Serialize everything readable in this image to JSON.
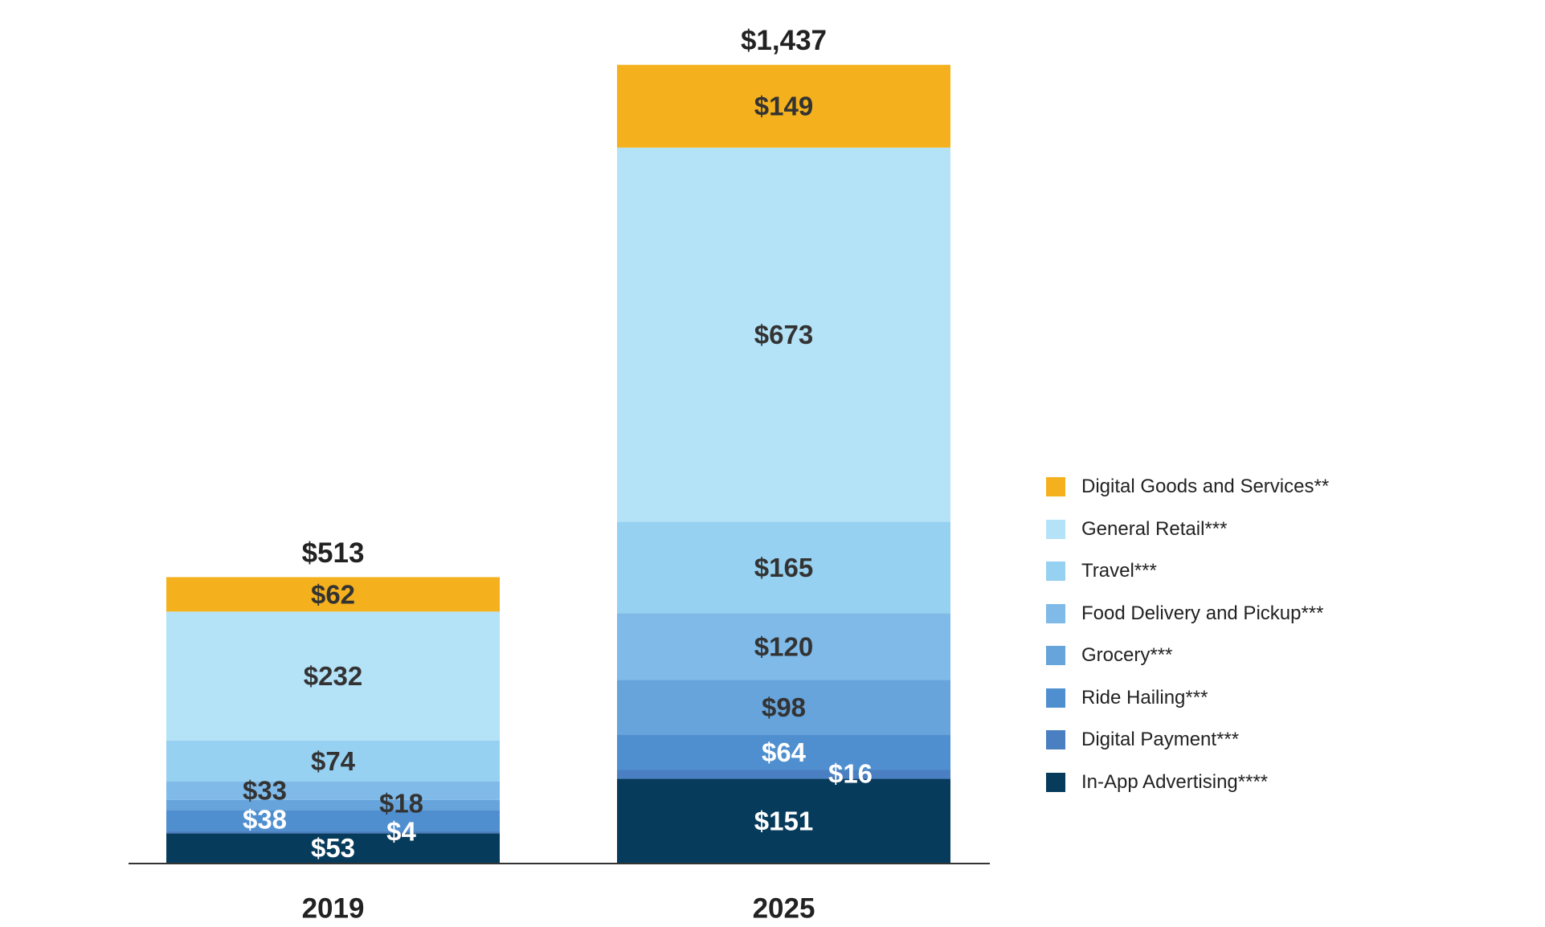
{
  "chart_data": {
    "type": "bar",
    "stacked": true,
    "categories": [
      "2019",
      "2025"
    ],
    "totals": [
      "$513",
      "$1,437"
    ],
    "series": [
      {
        "name": "In-App Advertising****",
        "color": "#073b5c",
        "values": [
          53,
          151
        ],
        "labels": [
          "$53",
          "$151"
        ],
        "label_color": "#ffffff"
      },
      {
        "name": "Digital Payment***",
        "color": "#4a7fc1",
        "values": [
          4,
          16
        ],
        "labels": [
          "$4",
          "$16"
        ],
        "label_color": "#ffffff"
      },
      {
        "name": "Ride Hailing***",
        "color": "#4f8fd0",
        "values": [
          38,
          64
        ],
        "labels": [
          "$38",
          "$64"
        ],
        "label_color": "#ffffff"
      },
      {
        "name": "Grocery***",
        "color": "#66a4db",
        "values": [
          18,
          98
        ],
        "labels": [
          "$18",
          "$98"
        ],
        "label_color": "#333333"
      },
      {
        "name": "Food Delivery and Pickup***",
        "color": "#7fbae8",
        "values": [
          33,
          120
        ],
        "labels": [
          "$33",
          "$120"
        ],
        "label_color": "#333333"
      },
      {
        "name": "Travel***",
        "color": "#97d1f1",
        "values": [
          74,
          165
        ],
        "labels": [
          "$74",
          "$165"
        ],
        "label_color": "#333333"
      },
      {
        "name": "General Retail***",
        "color": "#b4e2f7",
        "values": [
          232,
          673
        ],
        "labels": [
          "$232",
          "$673"
        ],
        "label_color": "#333333"
      },
      {
        "name": "Digital Goods and Services**",
        "color": "#f4b11d",
        "values": [
          62,
          149
        ],
        "labels": [
          "$62",
          "$149"
        ],
        "label_color": "#333333"
      }
    ],
    "legend_order": [
      "Digital Goods and Services**",
      "General Retail***",
      "Travel***",
      "Food Delivery and Pickup***",
      "Grocery***",
      "Ride Hailing***",
      "Digital Payment***",
      "In-App Advertising****"
    ],
    "ylim": [
      0,
      1437
    ],
    "grid": false,
    "legend_position": "right"
  }
}
